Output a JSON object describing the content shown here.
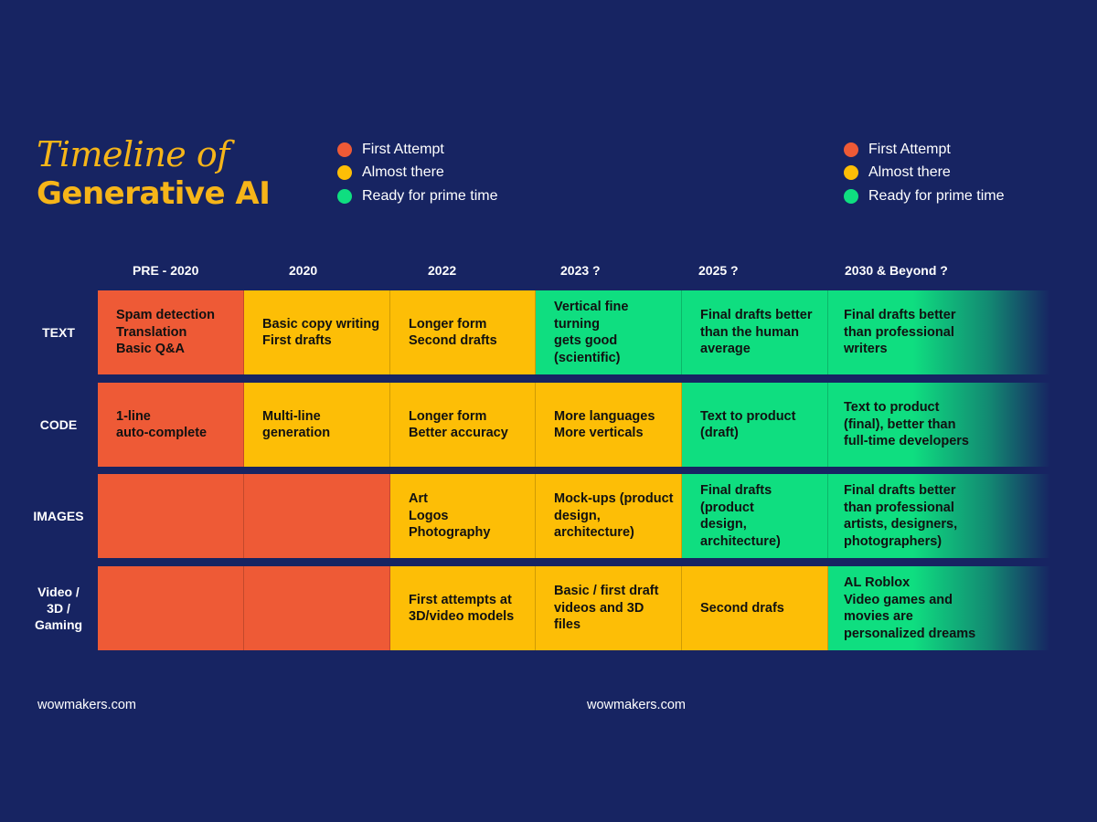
{
  "title": {
    "line1": "Timeline of",
    "line2": "Generative AI"
  },
  "colors": {
    "background": "#172462",
    "first_attempt": "#ee5a36",
    "almost_there": "#fdbe06",
    "ready": "#0fde80",
    "title": "#f6b519"
  },
  "legends": [
    {
      "items": [
        {
          "label": "First Attempt",
          "color": "#ee5a36"
        },
        {
          "label": "Almost there",
          "color": "#fdbe06"
        },
        {
          "label": "Ready for prime time",
          "color": "#0fde80"
        }
      ]
    },
    {
      "items": [
        {
          "label": "First Attempt",
          "color": "#ee5a36"
        },
        {
          "label": "Almost there",
          "color": "#fdbe06"
        },
        {
          "label": "Ready for prime time",
          "color": "#0fde80"
        }
      ]
    }
  ],
  "columns": [
    "PRE - 2020",
    "2020",
    "2022",
    "2023 ?",
    "2025 ?",
    "2030 & Beyond ?"
  ],
  "rows": [
    {
      "label": "TEXT",
      "cells": [
        {
          "text": "Spam detection\nTranslation\nBasic Q&A",
          "status": "first_attempt"
        },
        {
          "text": "Basic copy writing\nFirst drafts",
          "status": "almost_there"
        },
        {
          "text": "Longer form\nSecond drafts",
          "status": "almost_there"
        },
        {
          "text": "Vertical fine turning\ngets good\n(scientific)",
          "status": "ready"
        },
        {
          "text": "Final drafts better\nthan the human\naverage",
          "status": "ready"
        },
        {
          "text": "Final drafts better\nthan professional\nwriters",
          "status": "ready"
        }
      ]
    },
    {
      "label": "CODE",
      "cells": [
        {
          "text": "1-line\nauto-complete",
          "status": "first_attempt"
        },
        {
          "text": "Multi-line\ngeneration",
          "status": "almost_there"
        },
        {
          "text": "Longer form\nBetter accuracy",
          "status": "almost_there"
        },
        {
          "text": "More languages\nMore verticals",
          "status": "almost_there"
        },
        {
          "text": "Text to product\n(draft)",
          "status": "ready"
        },
        {
          "text": "Text to product\n(final), better than\nfull-time developers",
          "status": "ready"
        }
      ]
    },
    {
      "label": "IMAGES",
      "cells": [
        {
          "text": "",
          "status": "first_attempt"
        },
        {
          "text": "",
          "status": "first_attempt"
        },
        {
          "text": "Art\nLogos\nPhotography",
          "status": "almost_there"
        },
        {
          "text": "Mock-ups (product\ndesign, architecture)",
          "status": "almost_there"
        },
        {
          "text": "Final drafts (product\ndesign, architecture)",
          "status": "ready"
        },
        {
          "text": "Final drafts better\nthan professional\nartists, designers,\nphotographers)",
          "status": "ready"
        }
      ]
    },
    {
      "label": "Video /\n3D /\nGaming",
      "cells": [
        {
          "text": "",
          "status": "first_attempt"
        },
        {
          "text": "",
          "status": "first_attempt"
        },
        {
          "text": "First attempts at\n3D/video models",
          "status": "almost_there"
        },
        {
          "text": "Basic / first draft\nvideos and 3D files",
          "status": "almost_there"
        },
        {
          "text": "Second drafs",
          "status": "almost_there"
        },
        {
          "text": "AL Roblox\nVideo games and\nmovies are\npersonalized dreams",
          "status": "ready"
        }
      ]
    }
  ],
  "footer": [
    "wowmakers.com",
    "wowmakers.com"
  ]
}
